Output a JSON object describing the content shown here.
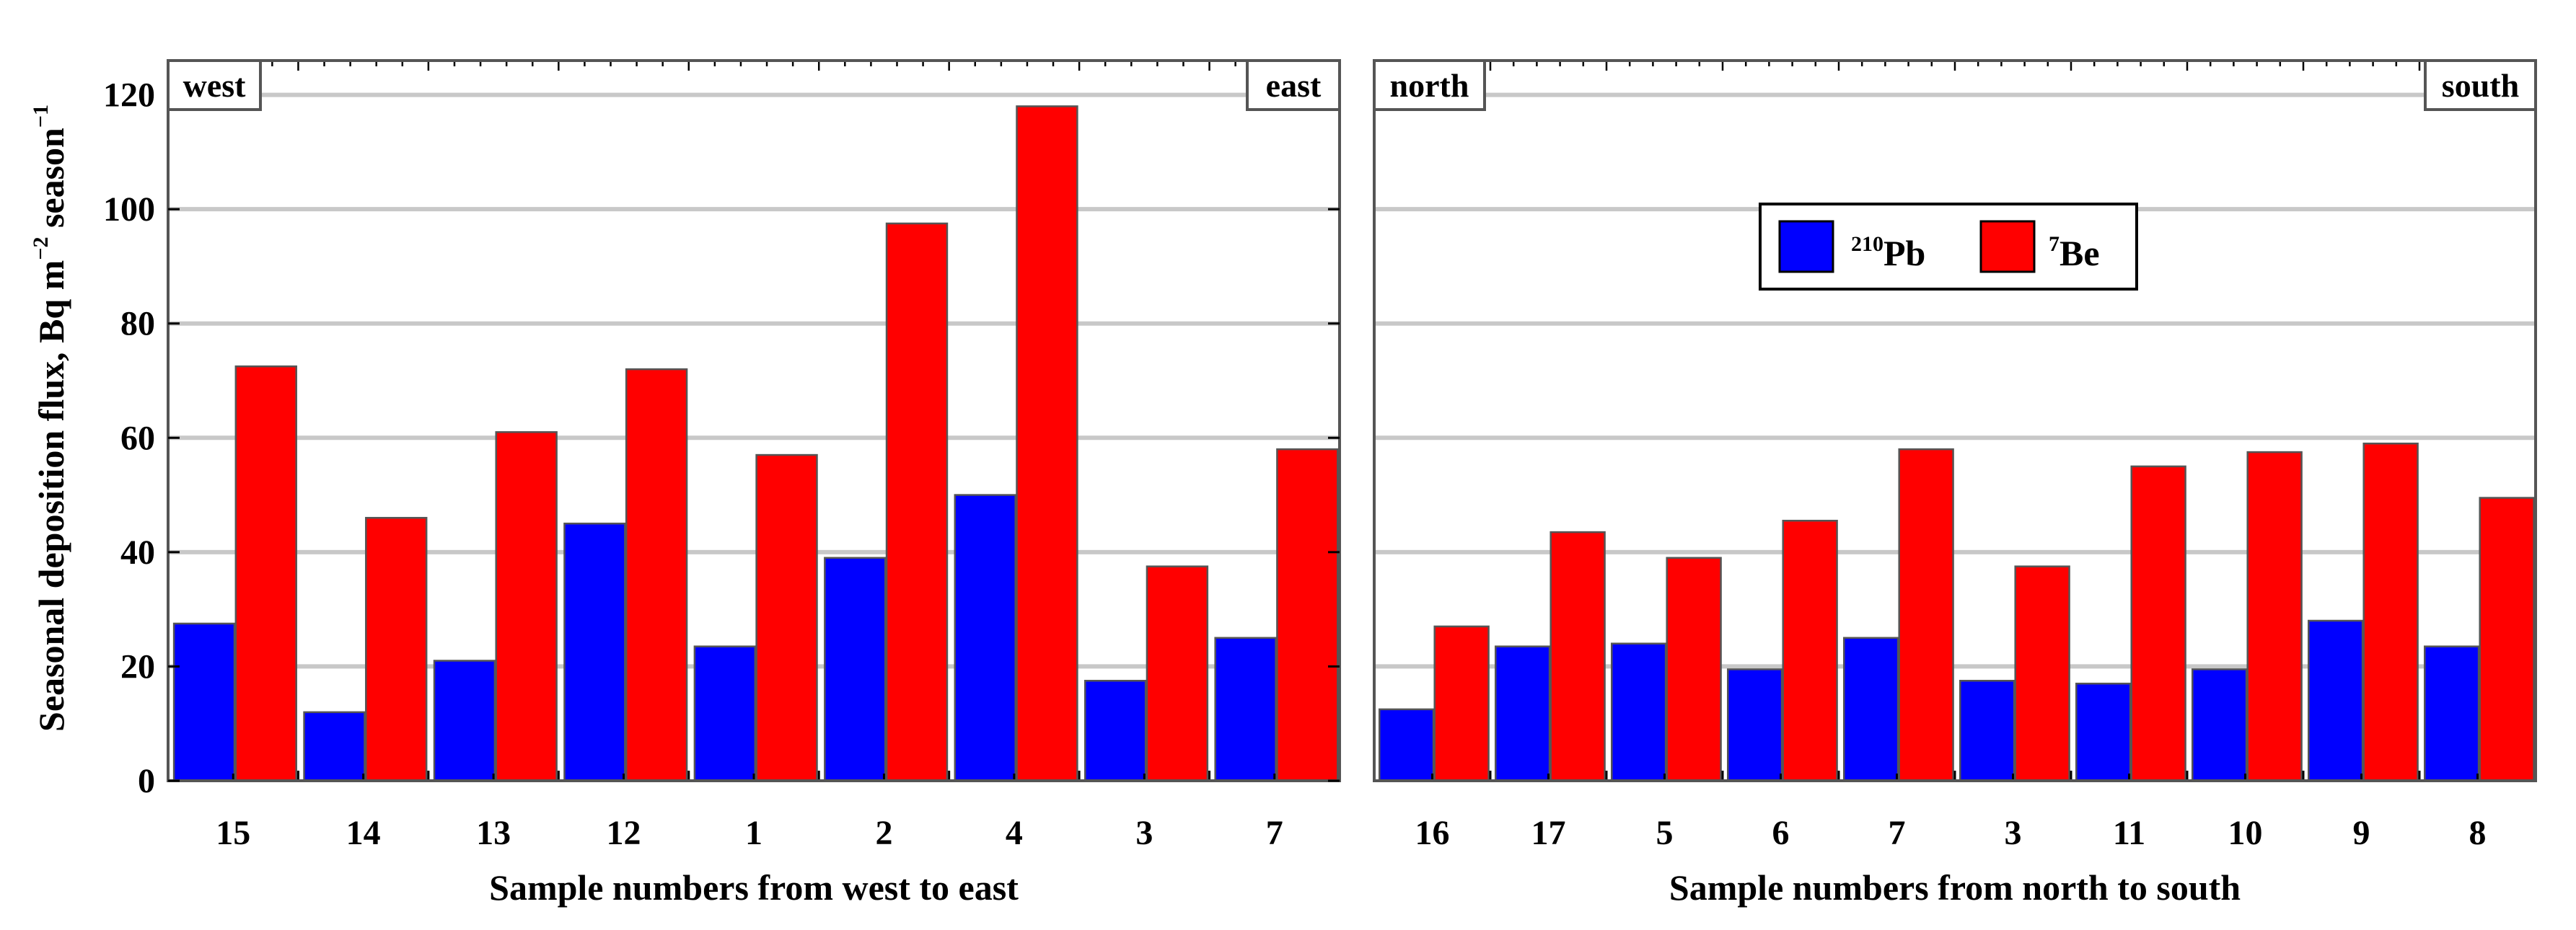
{
  "chart_data": [
    {
      "type": "bar",
      "panel": "left",
      "xlabel": "Sample numbers from west to east",
      "ylabel": "Seasonal deposition flux, Bq m",
      "ylabel_exp1": "−2",
      "ylabel_mid": " season",
      "ylabel_exp2": "−1",
      "ylim": [
        0,
        126
      ],
      "yticks": [
        "0",
        "20",
        "40",
        "60",
        "80",
        "100",
        "120"
      ],
      "corner_left": "west",
      "corner_right": "east",
      "categories": [
        "15",
        "14",
        "13",
        "12",
        "1",
        "2",
        "4",
        "3",
        "7"
      ],
      "series": [
        {
          "name": "210Pb",
          "color": "#0000ff",
          "values": [
            27.5,
            12,
            21,
            45,
            23.5,
            39,
            50,
            17.5,
            25
          ]
        },
        {
          "name": "7Be",
          "color": "#ff0000",
          "values": [
            72.5,
            46,
            61,
            72,
            57,
            97.5,
            118,
            37.5,
            58
          ]
        }
      ]
    },
    {
      "type": "bar",
      "panel": "right",
      "xlabel": "Sample numbers from north to south",
      "ylim": [
        0,
        126
      ],
      "corner_left": "north",
      "corner_right": "south",
      "categories": [
        "16",
        "17",
        "5",
        "6",
        "7",
        "3",
        "11",
        "10",
        "9",
        "8"
      ],
      "series": [
        {
          "name": "210Pb",
          "color": "#0000ff",
          "values": [
            12.5,
            23.5,
            24,
            19.5,
            25,
            17.5,
            17,
            19.5,
            28,
            23.5
          ]
        },
        {
          "name": "7Be",
          "color": "#ff0000",
          "values": [
            27,
            43.5,
            39,
            45.5,
            58,
            37.5,
            55,
            57.5,
            59,
            49.5
          ]
        }
      ]
    }
  ],
  "legend": [
    {
      "sup": "210",
      "base": "Pb",
      "color": "#0000ff"
    },
    {
      "sup": "7",
      "base": "Be",
      "color": "#ff0000"
    }
  ]
}
